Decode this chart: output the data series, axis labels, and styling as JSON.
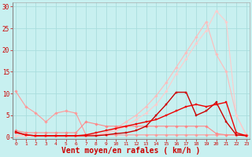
{
  "background_color": "#c8f0f0",
  "grid_color": "#aadddd",
  "xlabel": "Vent moyen/en rafales ( km/h )",
  "xlabel_color": "#cc0000",
  "xlabel_fontsize": 7,
  "xticks": [
    0,
    1,
    2,
    3,
    4,
    5,
    6,
    7,
    8,
    9,
    10,
    11,
    12,
    13,
    14,
    15,
    16,
    17,
    18,
    19,
    20,
    21,
    22,
    23
  ],
  "yticks": [
    0,
    5,
    10,
    15,
    20,
    25,
    30
  ],
  "ylim": [
    -0.5,
    31
  ],
  "xlim": [
    -0.3,
    23.3
  ],
  "series": [
    {
      "name": "light_pink_diagonal1",
      "x": [
        0,
        1,
        2,
        3,
        4,
        5,
        6,
        7,
        8,
        9,
        10,
        11,
        12,
        13,
        14,
        15,
        16,
        17,
        18,
        19,
        20,
        21,
        22,
        23
      ],
      "y": [
        0.3,
        0.3,
        0.3,
        0.3,
        0.3,
        0.3,
        0.3,
        0.3,
        0.5,
        1.0,
        2.0,
        3.5,
        5.0,
        7.0,
        9.5,
        12.5,
        16.0,
        19.5,
        23.0,
        26.5,
        19.0,
        15.0,
        5.0,
        0.5
      ],
      "color": "#ffbbbb",
      "linewidth": 0.8,
      "marker": "D",
      "markersize": 1.8
    },
    {
      "name": "light_pink_diagonal2",
      "x": [
        0,
        1,
        2,
        3,
        4,
        5,
        6,
        7,
        8,
        9,
        10,
        11,
        12,
        13,
        14,
        15,
        16,
        17,
        18,
        19,
        20,
        21,
        22,
        23
      ],
      "y": [
        0.3,
        0.3,
        0.3,
        0.3,
        0.3,
        0.3,
        0.3,
        0.3,
        0.5,
        0.8,
        1.5,
        2.5,
        4.0,
        5.5,
        7.5,
        10.5,
        14.5,
        18.0,
        21.5,
        24.5,
        29.0,
        26.5,
        5.0,
        0.3
      ],
      "color": "#ffcccc",
      "linewidth": 0.8,
      "marker": "D",
      "markersize": 1.8
    },
    {
      "name": "medium_pink_starting_high",
      "x": [
        0,
        1,
        2,
        3,
        4,
        5,
        6,
        7,
        8,
        9,
        10,
        11,
        12,
        13,
        14,
        15,
        16,
        17,
        18,
        19,
        20,
        21,
        22,
        23
      ],
      "y": [
        10.5,
        7.0,
        5.5,
        3.5,
        5.5,
        6.0,
        5.5,
        0.5,
        0.5,
        0.5,
        0.5,
        0.5,
        0.5,
        0.5,
        0.5,
        0.5,
        0.5,
        0.5,
        0.5,
        0.5,
        0.5,
        0.5,
        0.5,
        0.5
      ],
      "color": "#ff9999",
      "linewidth": 0.8,
      "marker": "D",
      "markersize": 1.8
    },
    {
      "name": "medium_pink_flat",
      "x": [
        0,
        1,
        2,
        3,
        4,
        5,
        6,
        7,
        8,
        9,
        10,
        11,
        12,
        13,
        14,
        15,
        16,
        17,
        18,
        19,
        20,
        21,
        22,
        23
      ],
      "y": [
        1.5,
        1.0,
        1.0,
        1.0,
        1.0,
        1.0,
        1.0,
        3.5,
        3.0,
        2.5,
        2.5,
        2.5,
        2.5,
        2.5,
        2.5,
        2.5,
        2.5,
        2.5,
        2.5,
        2.5,
        0.8,
        0.5,
        0.5,
        0.5
      ],
      "color": "#ff8888",
      "linewidth": 0.8,
      "marker": "D",
      "markersize": 1.8
    },
    {
      "name": "dark_red_peaked",
      "x": [
        0,
        1,
        2,
        3,
        4,
        5,
        6,
        7,
        8,
        9,
        10,
        11,
        12,
        13,
        14,
        15,
        16,
        17,
        18,
        19,
        20,
        21,
        22,
        23
      ],
      "y": [
        1.2,
        0.5,
        0.3,
        0.3,
        0.3,
        0.3,
        0.3,
        0.3,
        0.3,
        0.5,
        0.8,
        1.0,
        1.5,
        2.5,
        5.0,
        7.5,
        10.3,
        10.3,
        5.0,
        6.0,
        8.0,
        3.5,
        0.5,
        0.3
      ],
      "color": "#cc0000",
      "linewidth": 1.0,
      "marker": "s",
      "markersize": 1.8
    },
    {
      "name": "dark_red_rising",
      "x": [
        0,
        1,
        2,
        3,
        4,
        5,
        6,
        7,
        8,
        9,
        10,
        11,
        12,
        13,
        14,
        15,
        16,
        17,
        18,
        19,
        20,
        21,
        22,
        23
      ],
      "y": [
        1.0,
        0.5,
        0.3,
        0.3,
        0.3,
        0.3,
        0.3,
        0.5,
        1.0,
        1.5,
        2.0,
        2.5,
        3.0,
        3.5,
        4.0,
        5.0,
        6.0,
        7.0,
        7.5,
        7.0,
        7.5,
        8.0,
        1.0,
        0.3
      ],
      "color": "#ee0000",
      "linewidth": 1.0,
      "marker": "s",
      "markersize": 1.8
    }
  ]
}
